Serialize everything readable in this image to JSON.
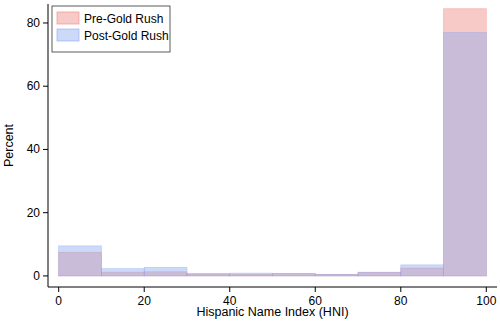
{
  "chart_data": {
    "type": "histogram",
    "x_label": "Hispanic Name Index (HNI)",
    "y_label": "Percent",
    "bins": [
      0,
      10,
      20,
      30,
      40,
      50,
      60,
      70,
      80,
      90,
      100
    ],
    "series": [
      {
        "name": "Pre-Gold Rush",
        "color": "#ee8a82",
        "values": [
          7.5,
          1.2,
          1.3,
          0.6,
          0.5,
          0.7,
          0.5,
          1.2,
          2.5,
          84.5
        ]
      },
      {
        "name": "Post-Gold Rush",
        "color": "#8eaaf0",
        "values": [
          9.5,
          2.3,
          2.7,
          0.8,
          0.9,
          0.8,
          0.5,
          1.1,
          3.5,
          77
        ]
      }
    ],
    "xlim": [
      -2.5,
      102.5
    ],
    "xticks": [
      0,
      20,
      40,
      60,
      80,
      100
    ],
    "ylim": [
      -3.5,
      86
    ],
    "yticks": [
      0,
      20,
      40,
      60,
      80
    ],
    "grid": false,
    "legend": "top-left"
  }
}
